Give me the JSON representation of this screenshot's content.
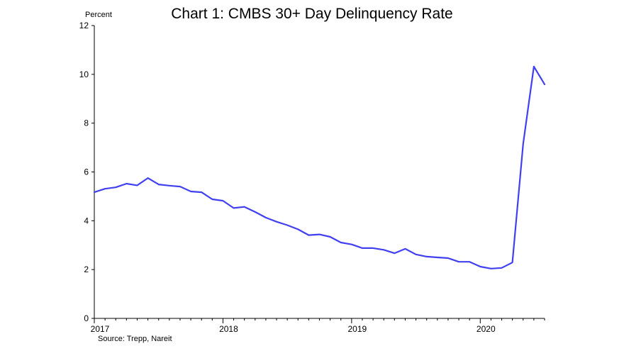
{
  "chart_data": {
    "type": "line",
    "title": "Chart 1: CMBS 30+ Day Delinquency Rate",
    "ylabel": "Percent",
    "xlabel": "",
    "source": "Source: Trepp, Nareit",
    "ylim": [
      0,
      12
    ],
    "yticks": [
      0,
      2,
      4,
      6,
      8,
      10,
      12
    ],
    "xlim": [
      "2017-01",
      "2020-07"
    ],
    "xticks": [
      "2017",
      "2018",
      "2019",
      "2020"
    ],
    "grid": false,
    "line_color": "#4040f0",
    "series": [
      {
        "x": [
          "2017-01",
          "2017-02",
          "2017-03",
          "2017-04",
          "2017-05",
          "2017-06",
          "2017-07",
          "2017-08",
          "2017-09",
          "2017-10",
          "2017-11",
          "2017-12",
          "2018-01",
          "2018-02",
          "2018-03",
          "2018-04",
          "2018-05",
          "2018-06",
          "2018-07",
          "2018-08",
          "2018-09",
          "2018-10",
          "2018-11",
          "2018-12",
          "2019-01",
          "2019-02",
          "2019-03",
          "2019-04",
          "2019-05",
          "2019-06",
          "2019-07",
          "2019-08",
          "2019-09",
          "2019-10",
          "2019-11",
          "2019-12",
          "2020-01",
          "2020-02",
          "2020-03",
          "2020-04",
          "2020-05",
          "2020-06",
          "2020-07"
        ],
        "values": [
          5.17,
          5.31,
          5.37,
          5.52,
          5.45,
          5.75,
          5.49,
          5.44,
          5.4,
          5.2,
          5.17,
          4.88,
          4.82,
          4.52,
          4.57,
          4.36,
          4.13,
          3.96,
          3.82,
          3.65,
          3.41,
          3.44,
          3.34,
          3.11,
          3.03,
          2.88,
          2.88,
          2.81,
          2.67,
          2.85,
          2.62,
          2.53,
          2.5,
          2.47,
          2.32,
          2.32,
          2.12,
          2.04,
          2.07,
          2.29,
          7.15,
          10.32,
          9.59
        ]
      }
    ]
  }
}
